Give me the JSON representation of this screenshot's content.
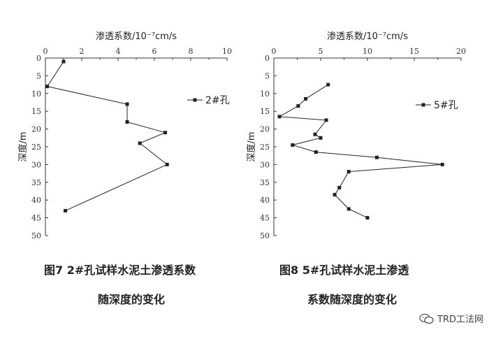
{
  "figures": [
    {
      "caption_line1": "图7  2#孔试样水泥土渗透系数",
      "caption_line2": "随深度的变化"
    },
    {
      "caption_line1": "图8  5#孔试样水泥土渗透",
      "caption_line2": "系数随深度的变化"
    }
  ],
  "watermark": {
    "text": "TRD工法网",
    "icon": "wechat-icon"
  },
  "chart_data": [
    {
      "type": "line",
      "title": "",
      "xlabel": "渗透系数/10⁻⁷cm/s",
      "ylabel": "深度/m",
      "x_axis_position": "top",
      "y_axis_inverted": true,
      "xlim": [
        0,
        10
      ],
      "ylim": [
        0,
        50
      ],
      "xticks": [
        "0",
        "2",
        "4",
        "6",
        "8",
        "10"
      ],
      "yticks": [
        "0",
        "5",
        "10",
        "15",
        "20",
        "25",
        "30",
        "35",
        "40",
        "45",
        "50"
      ],
      "grid": false,
      "legend_placement": "right",
      "series": [
        {
          "name": "2#孔",
          "marker": "square",
          "color": "#222222",
          "points": [
            {
              "x": 1.0,
              "y": 1
            },
            {
              "x": 0.1,
              "y": 8
            },
            {
              "x": 4.5,
              "y": 13
            },
            {
              "x": 4.5,
              "y": 18
            },
            {
              "x": 6.6,
              "y": 21
            },
            {
              "x": 5.2,
              "y": 24
            },
            {
              "x": 6.7,
              "y": 30
            },
            {
              "x": 1.1,
              "y": 43
            }
          ]
        }
      ]
    },
    {
      "type": "line",
      "title": "",
      "xlabel": "渗透系数/10⁻⁷cm/s",
      "ylabel": "深度/m",
      "x_axis_position": "top",
      "y_axis_inverted": true,
      "xlim": [
        0,
        20
      ],
      "ylim": [
        0,
        50
      ],
      "xticks": [
        "0",
        "5",
        "10",
        "15",
        "20"
      ],
      "yticks": [
        "0",
        "5",
        "10",
        "15",
        "20",
        "25",
        "30",
        "35",
        "40",
        "45",
        "50"
      ],
      "grid": false,
      "legend_placement": "right",
      "series": [
        {
          "name": "5#孔",
          "marker": "square",
          "color": "#222222",
          "points": [
            {
              "x": 5.8,
              "y": 7.5
            },
            {
              "x": 3.4,
              "y": 11.5
            },
            {
              "x": 2.6,
              "y": 13.5
            },
            {
              "x": 0.6,
              "y": 16.5
            },
            {
              "x": 5.6,
              "y": 17.5
            },
            {
              "x": 4.4,
              "y": 21.5
            },
            {
              "x": 5.0,
              "y": 22.5
            },
            {
              "x": 2.0,
              "y": 24.5
            },
            {
              "x": 4.5,
              "y": 26.5
            },
            {
              "x": 11.0,
              "y": 28
            },
            {
              "x": 18.0,
              "y": 30
            },
            {
              "x": 8.0,
              "y": 32
            },
            {
              "x": 7.0,
              "y": 36.5
            },
            {
              "x": 6.5,
              "y": 38.5
            },
            {
              "x": 8.0,
              "y": 42.5
            },
            {
              "x": 10.0,
              "y": 45
            }
          ]
        }
      ]
    }
  ]
}
